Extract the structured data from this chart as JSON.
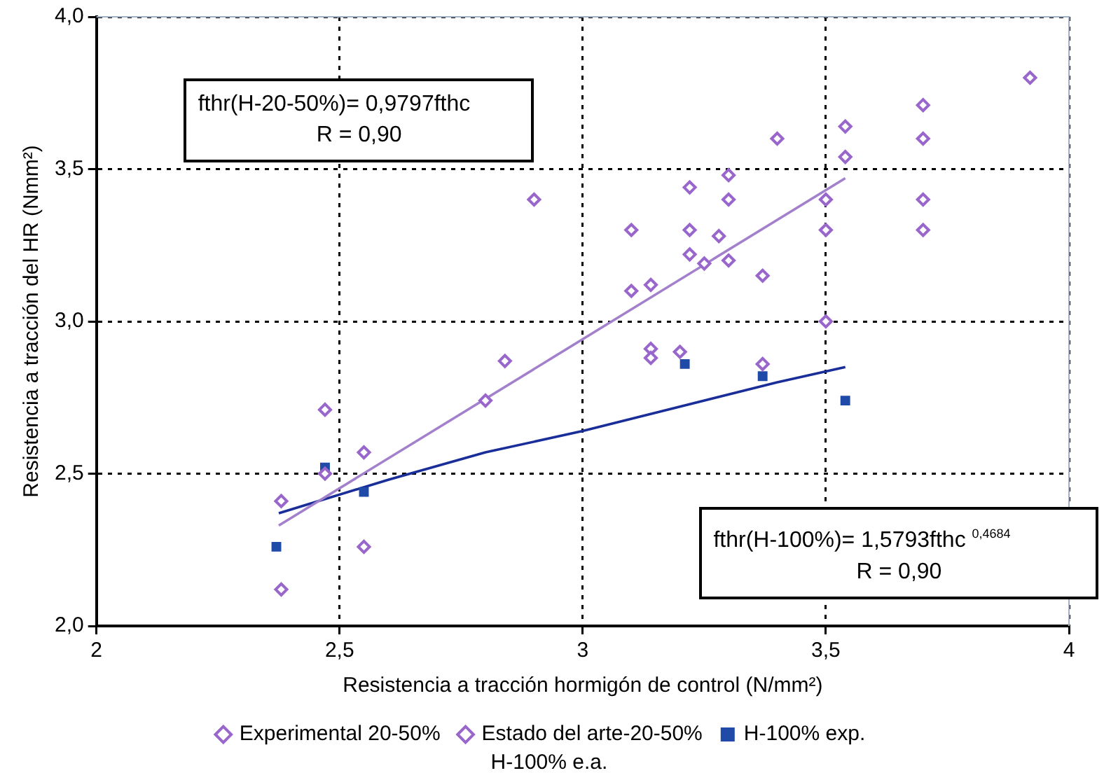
{
  "chart_data": {
    "type": "scatter",
    "xlabel": "Resistencia a tracción hormigón de control (N/mm²)",
    "ylabel": "Resistencia a tracción del HR (Nmm²)",
    "xlim": [
      2,
      4
    ],
    "xticks": [
      2,
      {
        "value": 2.5,
        "label": "2,5"
      },
      3,
      {
        "value": 3.5,
        "label": "3,5"
      },
      4
    ],
    "ylim": [
      2,
      4
    ],
    "yticks": [
      {
        "value": 2,
        "label": "2,0"
      },
      {
        "value": 2.5,
        "label": "2,5"
      },
      {
        "value": 3,
        "label": "3,0"
      },
      {
        "value": 3.5,
        "label": "3,5"
      },
      {
        "value": 4,
        "label": "4,0"
      }
    ],
    "grid": true,
    "legend": "bottom",
    "series": [
      {
        "name": "Experimental 20-50%",
        "color": "#9966cc",
        "marker": "diamond",
        "x": [
          2.38,
          2.38,
          2.47,
          2.47,
          2.55,
          2.55,
          2.8,
          2.84,
          3.1,
          3.1,
          3.14,
          3.14,
          3.14,
          3.2,
          3.22,
          3.22,
          3.22,
          3.25,
          3.3,
          3.3,
          3.28,
          3.3
        ],
        "values": [
          2.41,
          2.12,
          2.71,
          2.5,
          2.57,
          2.26,
          2.74,
          2.87,
          3.3,
          3.1,
          3.12,
          2.91,
          2.88,
          2.9,
          3.44,
          3.3,
          3.22,
          3.19,
          3.48,
          3.4,
          3.28,
          3.2
        ]
      },
      {
        "name": "Estado del arte-20-50%",
        "color": "#9966cc",
        "marker": "diamond",
        "x": [
          2.9,
          3.37,
          3.37,
          3.4,
          3.5,
          3.5,
          3.5,
          3.54,
          3.54,
          3.7,
          3.7,
          3.7,
          3.7,
          3.92
        ],
        "values": [
          3.4,
          3.15,
          2.86,
          3.6,
          3.4,
          3.3,
          3,
          3.64,
          3.54,
          3.71,
          3.6,
          3.4,
          3.3,
          3.8
        ]
      },
      {
        "name": "H-100% exp.",
        "color": "#1f4aa8",
        "marker": "square",
        "x": [
          2.37,
          2.47,
          2.55,
          3.21,
          3.37,
          3.54
        ],
        "values": [
          2.26,
          2.52,
          2.44,
          2.86,
          2.82,
          2.74
        ]
      },
      {
        "type": "line",
        "color": "#a380cc",
        "marker": "none",
        "x": [
          2.375,
          3.54
        ],
        "values": [
          2.33,
          3.47
        ]
      },
      {
        "type": "line",
        "color": "#1a2e9a",
        "marker": "none",
        "x": [
          2.375,
          2.6,
          2.8,
          3,
          3.2,
          3.4,
          3.54
        ],
        "values": [
          2.37,
          2.48,
          2.57,
          2.64,
          2.72,
          2.8,
          2.85
        ]
      }
    ],
    "annotations": [
      "fthr(H-20-50%)= 0,9797fthc\nR = 0,90",
      "fthr(H-100%)= 1,5793fthc $^{0,4684}$\nR = 0,90",
      "H-100% e.a."
    ]
  }
}
